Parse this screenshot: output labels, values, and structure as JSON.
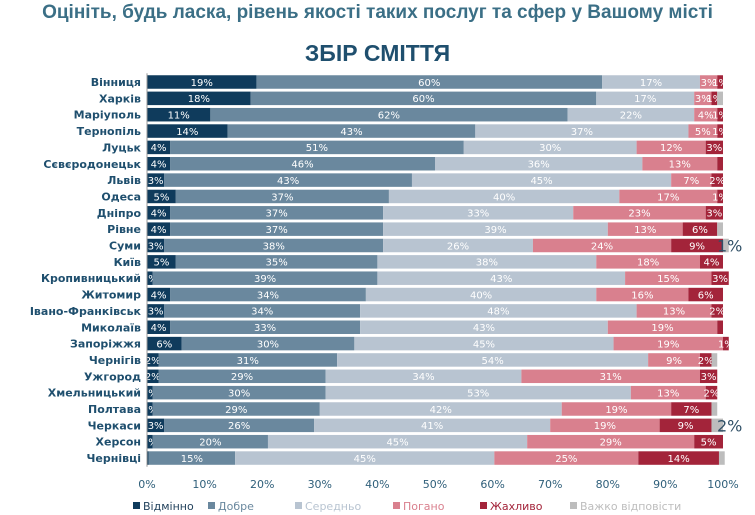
{
  "chart_data": {
    "type": "bar",
    "orientation": "horizontal-stacked-100",
    "title": "Оцініть, будь ласка, рівень якості таких послуг та сфер у Вашому місті",
    "subtitle": "ЗБІР СМІТТЯ",
    "xlim": [
      0,
      100
    ],
    "xticks": [
      "0%",
      "10%",
      "20%",
      "30%",
      "40%",
      "50%",
      "60%",
      "70%",
      "80%",
      "90%",
      "100%"
    ],
    "legend_placement": "bottom",
    "categories": [
      "Вінниця",
      "Харків",
      "Маріуполь",
      "Тернопіль",
      "Луцьк",
      "Сєвєродонецьк",
      "Львів",
      "Одеса",
      "Дніпро",
      "Рівне",
      "Суми",
      "Київ",
      "Кропивницький",
      "Житомир",
      "Івано-Франківськ",
      "Миколаїв",
      "Запоріжжя",
      "Чернігів",
      "Ужгород",
      "Хмельницький",
      "Полтава",
      "Черкаси",
      "Херсон",
      "Чернівці"
    ],
    "series": [
      {
        "name": "Відмінно",
        "color": "#0f3b5c",
        "values": [
          19,
          18,
          11,
          14,
          4,
          4,
          3,
          5,
          4,
          4,
          3,
          5,
          1,
          4,
          3,
          4,
          6,
          2,
          2,
          1,
          1,
          3,
          1,
          0.3
        ]
      },
      {
        "name": "Добре",
        "color": "#6a889e",
        "values": [
          60,
          60,
          62,
          43,
          51,
          46,
          43,
          37,
          37,
          37,
          38,
          35,
          39,
          34,
          34,
          33,
          30,
          31,
          29,
          30,
          29,
          26,
          20,
          15
        ]
      },
      {
        "name": "Середньо",
        "color": "#b8c4d1",
        "values": [
          17,
          17,
          22,
          37,
          30,
          36,
          45,
          40,
          33,
          39,
          26,
          38,
          43,
          40,
          48,
          43,
          45,
          54,
          34,
          53,
          42,
          41,
          45,
          45
        ]
      },
      {
        "name": "Погано",
        "color": "#d9808e",
        "values": [
          3,
          3,
          4,
          5,
          12,
          13,
          7,
          17,
          23,
          13,
          24,
          18,
          15,
          16,
          13,
          19,
          19,
          9,
          31,
          13,
          19,
          19,
          29,
          25
        ]
      },
      {
        "name": "Жахливо",
        "color": "#a3243a",
        "values": [
          1,
          1,
          1,
          1,
          3,
          1,
          2,
          1,
          3,
          6,
          9,
          4,
          3,
          6,
          2,
          1,
          1,
          2,
          3,
          2,
          7,
          9,
          5,
          14
        ]
      },
      {
        "name": "Важко відповісти",
        "color": "#bdbdbd",
        "values": [
          0,
          1,
          0,
          0,
          0,
          0,
          0,
          0,
          0,
          1,
          1,
          0,
          0,
          0,
          0,
          0,
          0,
          1,
          0,
          0,
          1,
          2,
          0,
          1
        ]
      }
    ],
    "hidden_labels": {
      "Сєвєродонецьк": [
        4
      ],
      "Миколаїв": [
        4
      ],
      "Чернівці": [
        0
      ]
    },
    "outside_labels": {
      "Суми": "1%",
      "Черкаси": "2%"
    }
  }
}
